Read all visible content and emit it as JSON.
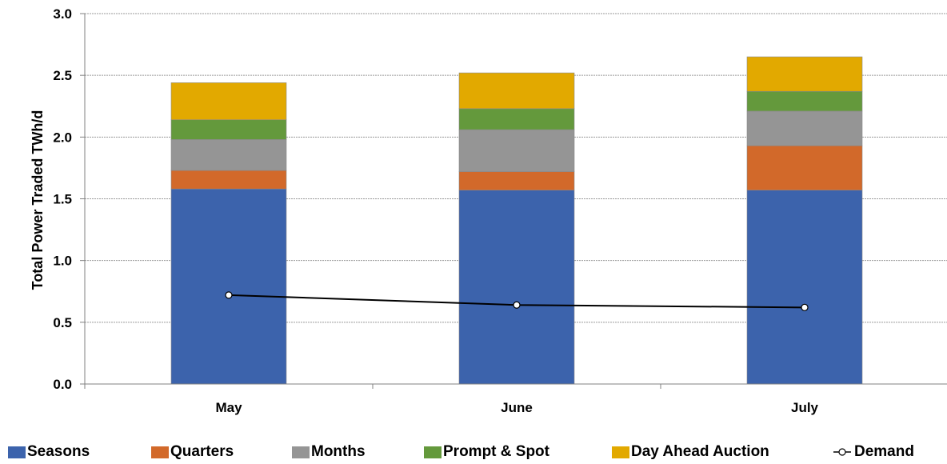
{
  "chart_data": {
    "type": "bar",
    "stacked": true,
    "categories": [
      "May",
      "June",
      "July"
    ],
    "ylabel": "Total Power Traded TWh/d",
    "xlabel": "",
    "ylim": [
      0,
      3.0
    ],
    "yticks": [
      "0.0",
      "0.5",
      "1.0",
      "1.5",
      "2.0",
      "2.5",
      "3.0"
    ],
    "grid": true,
    "legend_position": "bottom",
    "series": [
      {
        "name": "Seasons",
        "color": "#3C63AC",
        "values": [
          1.58,
          1.57,
          1.57
        ]
      },
      {
        "name": "Quarters",
        "color": "#D2692A",
        "values": [
          0.15,
          0.15,
          0.36
        ]
      },
      {
        "name": "Months",
        "color": "#959595",
        "values": [
          0.25,
          0.34,
          0.28
        ]
      },
      {
        "name": "Prompt & Spot",
        "color": "#64993C",
        "values": [
          0.16,
          0.17,
          0.16
        ]
      },
      {
        "name": "Day Ahead Auction",
        "color": "#E2A900",
        "values": [
          0.3,
          0.29,
          0.28
        ]
      }
    ],
    "line_series": {
      "name": "Demand",
      "color": "#000000",
      "values": [
        0.72,
        0.64,
        0.62
      ]
    }
  }
}
